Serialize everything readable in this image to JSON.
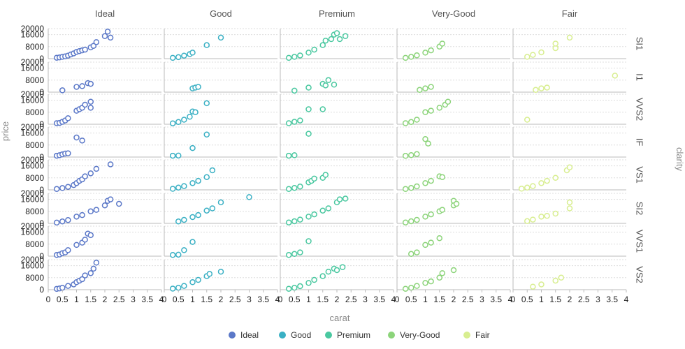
{
  "chart_data": {
    "type": "scatter",
    "xlabel": "carat",
    "ylabel": "price",
    "column_facet_label": "clarity",
    "columns": [
      "Ideal",
      "Good",
      "Premium",
      "Very-Good",
      "Fair"
    ],
    "rows": [
      "SI1",
      "I1",
      "VVS2",
      "IF",
      "VS1",
      "SI2",
      "VVS1",
      "VS2"
    ],
    "xlim": [
      0,
      4
    ],
    "x_ticks": [
      "0",
      "0.5",
      "1",
      "1.5",
      "2",
      "2.5",
      "3",
      "3.5",
      "4"
    ],
    "ylim": [
      0,
      20000
    ],
    "y_ticks": [
      "0",
      "8000",
      "16000",
      "20000"
    ],
    "grid": true,
    "legend_position": "bottom",
    "series": [
      {
        "name": "Ideal",
        "color": "#5b78c8"
      },
      {
        "name": "Good",
        "color": "#3ab0c4"
      },
      {
        "name": "Premium",
        "color": "#4ac8a0"
      },
      {
        "name": "Very-Good",
        "color": "#8cd47a"
      },
      {
        "name": "Fair",
        "color": "#d8ee90"
      }
    ],
    "points": {
      "SI1": {
        "Ideal": [
          [
            0.3,
            600
          ],
          [
            0.4,
            800
          ],
          [
            0.5,
            1200
          ],
          [
            0.6,
            1500
          ],
          [
            0.7,
            2000
          ],
          [
            0.8,
            2800
          ],
          [
            0.9,
            3500
          ],
          [
            1.0,
            4500
          ],
          [
            1.1,
            5000
          ],
          [
            1.2,
            5500
          ],
          [
            1.3,
            6000
          ],
          [
            1.5,
            7500
          ],
          [
            1.6,
            8500
          ],
          [
            1.7,
            11000
          ],
          [
            2.0,
            15000
          ],
          [
            2.1,
            18000
          ],
          [
            2.2,
            14000
          ]
        ],
        "Good": [
          [
            0.3,
            500
          ],
          [
            0.5,
            1000
          ],
          [
            0.7,
            2000
          ],
          [
            0.9,
            3000
          ],
          [
            1.0,
            4000
          ],
          [
            1.5,
            9000
          ],
          [
            2.0,
            14000
          ]
        ],
        "Premium": [
          [
            0.3,
            500
          ],
          [
            0.5,
            1200
          ],
          [
            0.7,
            2100
          ],
          [
            1.0,
            4000
          ],
          [
            1.2,
            6000
          ],
          [
            1.5,
            9000
          ],
          [
            1.6,
            12000
          ],
          [
            1.8,
            13000
          ],
          [
            1.9,
            16000
          ],
          [
            2.0,
            17000
          ],
          [
            2.1,
            13000
          ],
          [
            2.3,
            15000
          ]
        ],
        "Very-Good": [
          [
            0.3,
            500
          ],
          [
            0.5,
            1200
          ],
          [
            0.7,
            2200
          ],
          [
            1.0,
            4000
          ],
          [
            1.2,
            5500
          ],
          [
            1.5,
            8000
          ],
          [
            1.6,
            10000
          ]
        ],
        "Fair": [
          [
            0.5,
            1200
          ],
          [
            0.7,
            2500
          ],
          [
            1.0,
            4200
          ],
          [
            1.5,
            7000
          ],
          [
            1.5,
            10000
          ],
          [
            2.0,
            14000
          ]
        ]
      },
      "I1": {
        "Ideal": [
          [
            0.5,
            1200
          ],
          [
            1.0,
            3500
          ],
          [
            1.2,
            4000
          ],
          [
            1.4,
            6000
          ],
          [
            1.5,
            5500
          ]
        ],
        "Good": [
          [
            1.0,
            2500
          ],
          [
            1.1,
            3000
          ],
          [
            1.2,
            3500
          ]
        ],
        "Premium": [
          [
            0.5,
            1000
          ],
          [
            1.0,
            3000
          ],
          [
            1.5,
            5500
          ],
          [
            1.6,
            4500
          ],
          [
            1.7,
            8000
          ],
          [
            1.9,
            5000
          ]
        ],
        "Very-Good": [
          [
            0.8,
            1500
          ],
          [
            1.0,
            2500
          ],
          [
            1.2,
            3500
          ]
        ],
        "Fair": [
          [
            0.8,
            1500
          ],
          [
            1.0,
            2500
          ],
          [
            1.2,
            3000
          ],
          [
            3.6,
            11000
          ]
        ]
      },
      "VVS2": {
        "Ideal": [
          [
            0.3,
            700
          ],
          [
            0.4,
            900
          ],
          [
            0.5,
            1600
          ],
          [
            0.6,
            2500
          ],
          [
            0.7,
            4000
          ],
          [
            1.0,
            9000
          ],
          [
            1.1,
            10000
          ],
          [
            1.2,
            11000
          ],
          [
            1.3,
            13000
          ],
          [
            1.5,
            15000
          ],
          [
            1.5,
            11000
          ]
        ],
        "Good": [
          [
            0.3,
            600
          ],
          [
            0.5,
            1500
          ],
          [
            0.7,
            3000
          ],
          [
            0.9,
            5000
          ],
          [
            1.0,
            8500
          ],
          [
            1.1,
            8000
          ],
          [
            1.5,
            14000
          ]
        ],
        "Premium": [
          [
            0.3,
            700
          ],
          [
            0.5,
            1600
          ],
          [
            0.7,
            2500
          ],
          [
            1.0,
            10000
          ],
          [
            1.5,
            10000
          ]
        ],
        "Very-Good": [
          [
            0.3,
            700
          ],
          [
            0.5,
            1500
          ],
          [
            0.7,
            3000
          ],
          [
            1.0,
            8000
          ],
          [
            1.2,
            9000
          ],
          [
            1.5,
            11000
          ],
          [
            1.7,
            13000
          ],
          [
            1.8,
            15000
          ]
        ],
        "Fair": [
          [
            0.5,
            3000
          ]
        ]
      },
      "IF": {
        "Ideal": [
          [
            0.3,
            900
          ],
          [
            0.4,
            1200
          ],
          [
            0.5,
            1800
          ],
          [
            0.6,
            2300
          ],
          [
            0.7,
            2500
          ],
          [
            1.0,
            13000
          ],
          [
            1.2,
            11000
          ]
        ],
        "Good": [
          [
            0.3,
            900
          ],
          [
            0.5,
            1000
          ],
          [
            1.0,
            6000
          ],
          [
            1.5,
            15000
          ]
        ],
        "Premium": [
          [
            0.3,
            900
          ],
          [
            0.5,
            1200
          ],
          [
            1.0,
            15500
          ]
        ],
        "Very-Good": [
          [
            0.3,
            800
          ],
          [
            0.5,
            1300
          ],
          [
            0.7,
            2000
          ],
          [
            1.0,
            12000
          ],
          [
            1.1,
            9000
          ]
        ],
        "Fair": []
      },
      "VS1": {
        "Ideal": [
          [
            0.3,
            600
          ],
          [
            0.5,
            1200
          ],
          [
            0.7,
            2000
          ],
          [
            0.9,
            3200
          ],
          [
            1.0,
            4500
          ],
          [
            1.1,
            6000
          ],
          [
            1.2,
            7000
          ],
          [
            1.3,
            9000
          ],
          [
            1.5,
            11000
          ],
          [
            1.7,
            14000
          ],
          [
            2.2,
            17000
          ]
        ],
        "Good": [
          [
            0.3,
            700
          ],
          [
            0.5,
            1500
          ],
          [
            0.7,
            2500
          ],
          [
            1.0,
            4500
          ],
          [
            1.2,
            6000
          ],
          [
            1.5,
            8500
          ],
          [
            1.7,
            13000
          ]
        ],
        "Premium": [
          [
            0.3,
            600
          ],
          [
            0.5,
            1300
          ],
          [
            0.7,
            2200
          ],
          [
            1.0,
            5000
          ],
          [
            1.1,
            6000
          ],
          [
            1.2,
            7500
          ],
          [
            1.5,
            8000
          ],
          [
            1.6,
            10000
          ]
        ],
        "Very-Good": [
          [
            0.3,
            600
          ],
          [
            0.5,
            1300
          ],
          [
            0.7,
            2300
          ],
          [
            1.0,
            4500
          ],
          [
            1.2,
            6000
          ],
          [
            1.5,
            9000
          ],
          [
            1.6,
            8500
          ]
        ],
        "Fair": [
          [
            0.3,
            800
          ],
          [
            0.5,
            1500
          ],
          [
            0.7,
            2500
          ],
          [
            1.0,
            4500
          ],
          [
            1.2,
            6000
          ],
          [
            1.5,
            8000
          ],
          [
            1.9,
            13000
          ],
          [
            2.0,
            15000
          ]
        ]
      },
      "SI2": {
        "Ideal": [
          [
            0.3,
            500
          ],
          [
            0.5,
            1300
          ],
          [
            0.7,
            2200
          ],
          [
            1.0,
            4500
          ],
          [
            1.2,
            5500
          ],
          [
            1.5,
            8000
          ],
          [
            1.7,
            9000
          ],
          [
            2.0,
            12000
          ],
          [
            2.1,
            15000
          ],
          [
            2.2,
            16000
          ],
          [
            2.5,
            13000
          ]
        ],
        "Good": [
          [
            0.5,
            1300
          ],
          [
            0.7,
            2300
          ],
          [
            1.0,
            4200
          ],
          [
            1.2,
            5500
          ],
          [
            1.5,
            8500
          ],
          [
            1.7,
            10000
          ],
          [
            2.0,
            14000
          ],
          [
            3.0,
            17500
          ]
        ],
        "Premium": [
          [
            0.3,
            600
          ],
          [
            0.5,
            1400
          ],
          [
            0.7,
            2500
          ],
          [
            1.0,
            4500
          ],
          [
            1.2,
            6000
          ],
          [
            1.5,
            8500
          ],
          [
            1.7,
            10000
          ],
          [
            2.0,
            14000
          ],
          [
            2.1,
            16000
          ],
          [
            2.3,
            16500
          ]
        ],
        "Very-Good": [
          [
            0.3,
            600
          ],
          [
            0.5,
            1400
          ],
          [
            0.7,
            2300
          ],
          [
            1.0,
            4500
          ],
          [
            1.2,
            6000
          ],
          [
            1.5,
            8000
          ],
          [
            1.6,
            9000
          ],
          [
            2.0,
            15000
          ],
          [
            2.0,
            12000
          ],
          [
            2.1,
            13000
          ]
        ],
        "Fair": [
          [
            0.5,
            1500
          ],
          [
            0.7,
            2500
          ],
          [
            1.0,
            4500
          ],
          [
            1.2,
            5000
          ],
          [
            1.5,
            6500
          ],
          [
            2.0,
            10000
          ],
          [
            2.0,
            14000
          ]
        ]
      },
      "VVS1": {
        "Ideal": [
          [
            0.3,
            800
          ],
          [
            0.4,
            1100
          ],
          [
            0.5,
            2000
          ],
          [
            0.6,
            2500
          ],
          [
            0.7,
            4000
          ],
          [
            1.0,
            7500
          ],
          [
            1.2,
            9000
          ],
          [
            1.3,
            11000
          ],
          [
            1.4,
            15000
          ],
          [
            1.5,
            14000
          ]
        ],
        "Good": [
          [
            0.3,
            800
          ],
          [
            0.5,
            1000
          ],
          [
            0.7,
            4000
          ],
          [
            1.0,
            9500
          ]
        ],
        "Premium": [
          [
            0.3,
            800
          ],
          [
            0.5,
            1500
          ],
          [
            0.7,
            2500
          ],
          [
            1.0,
            10000
          ]
        ],
        "Very-Good": [
          [
            0.5,
            1500
          ],
          [
            0.7,
            2500
          ],
          [
            1.0,
            7500
          ],
          [
            1.2,
            9000
          ],
          [
            1.5,
            12000
          ]
        ],
        "Fair": []
      },
      "VS2": {
        "Ideal": [
          [
            0.3,
            500
          ],
          [
            0.4,
            800
          ],
          [
            0.5,
            1300
          ],
          [
            0.7,
            2500
          ],
          [
            0.9,
            3500
          ],
          [
            1.0,
            5000
          ],
          [
            1.1,
            6000
          ],
          [
            1.2,
            7000
          ],
          [
            1.3,
            9500
          ],
          [
            1.5,
            11000
          ],
          [
            1.6,
            14000
          ],
          [
            1.7,
            18000
          ]
        ],
        "Good": [
          [
            0.3,
            700
          ],
          [
            0.5,
            1300
          ],
          [
            0.7,
            2500
          ],
          [
            1.0,
            5000
          ],
          [
            1.2,
            6500
          ],
          [
            1.5,
            9000
          ],
          [
            1.6,
            10500
          ],
          [
            2.0,
            12000
          ]
        ],
        "Premium": [
          [
            0.3,
            600
          ],
          [
            0.5,
            1300
          ],
          [
            0.7,
            2300
          ],
          [
            1.0,
            4500
          ],
          [
            1.2,
            6500
          ],
          [
            1.5,
            9000
          ],
          [
            1.7,
            12000
          ],
          [
            1.9,
            14000
          ],
          [
            2.0,
            13000
          ],
          [
            2.2,
            15000
          ]
        ],
        "Very-Good": [
          [
            0.3,
            600
          ],
          [
            0.5,
            1300
          ],
          [
            0.7,
            2500
          ],
          [
            1.0,
            4500
          ],
          [
            1.2,
            5500
          ],
          [
            1.5,
            8000
          ],
          [
            1.6,
            11000
          ],
          [
            2.0,
            13000
          ]
        ],
        "Fair": [
          [
            0.7,
            2000
          ],
          [
            1.0,
            3500
          ],
          [
            1.5,
            6000
          ],
          [
            1.7,
            8000
          ]
        ]
      }
    }
  }
}
